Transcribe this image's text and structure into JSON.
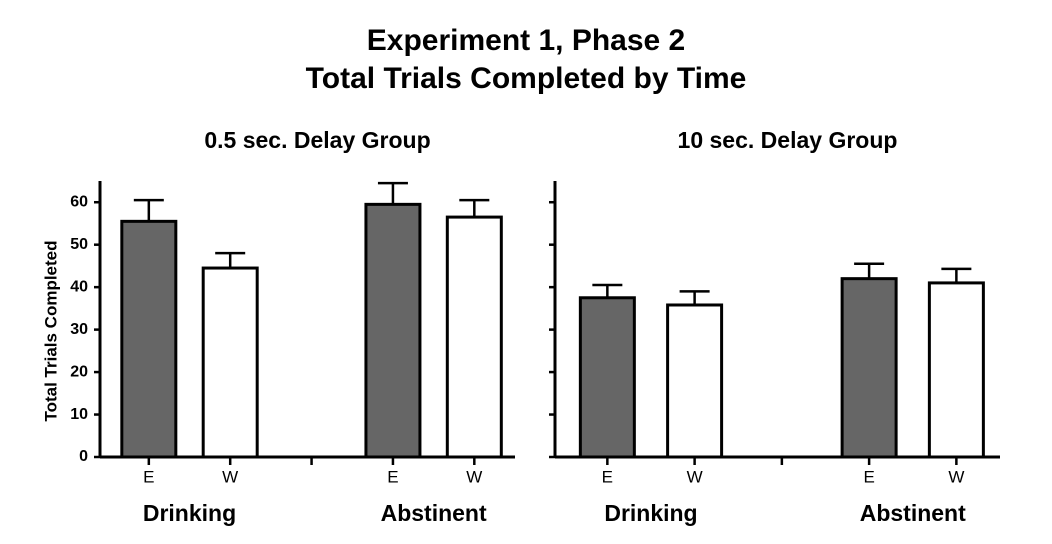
{
  "title": "Experiment 1, Phase 2",
  "subtitle": "Total Trials Completed by Time",
  "chart_data": [
    {
      "type": "bar",
      "title": "0.5 sec. Delay Group",
      "ylabel": "Total Trials Completed",
      "groups": [
        "Drinking",
        "Abstinent"
      ],
      "categories": [
        "E",
        "W",
        "E",
        "W"
      ],
      "values": [
        55.5,
        44.5,
        59.5,
        56.5
      ],
      "errors": [
        5,
        3.5,
        5,
        4
      ],
      "colors": [
        "#666666",
        "#ffffff",
        "#666666",
        "#ffffff"
      ],
      "ylim": [
        0,
        65
      ],
      "yticks": [
        0,
        10,
        20,
        30,
        40,
        50,
        60
      ],
      "ytick_labels": true
    },
    {
      "type": "bar",
      "title": "10 sec. Delay Group",
      "groups": [
        "Drinking",
        "Abstinent"
      ],
      "categories": [
        "E",
        "W",
        "E",
        "W"
      ],
      "values": [
        37.5,
        35.8,
        42,
        41
      ],
      "errors": [
        3,
        3.2,
        3.5,
        3.3
      ],
      "colors": [
        "#666666",
        "#ffffff",
        "#666666",
        "#ffffff"
      ],
      "ylim": [
        0,
        65
      ],
      "yticks": [
        0,
        10,
        20,
        30,
        40,
        50,
        60
      ],
      "ytick_labels": false
    }
  ]
}
